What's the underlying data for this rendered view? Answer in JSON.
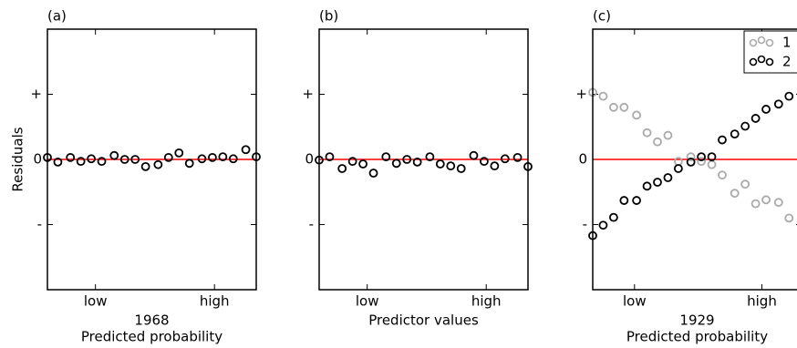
{
  "chart_data": [
    {
      "type": "scatter",
      "title": "(a)",
      "ylabel": "Residuals",
      "x_sublabel": "1968",
      "xlabel": "Predicted probability",
      "xlim": [
        0,
        1
      ],
      "ylim": [
        -2,
        2
      ],
      "xticks": [
        {
          "value": 0.23,
          "label": "low"
        },
        {
          "value": 0.8,
          "label": "high"
        }
      ],
      "yticks": [
        {
          "value": 1,
          "label": "+"
        },
        {
          "value": 0,
          "label": "0"
        },
        {
          "value": -1,
          "label": "-"
        }
      ],
      "reference_line": 0,
      "reference_color": "#ff0000",
      "color": "#000000",
      "x": [
        0,
        0.05,
        0.11,
        0.16,
        0.21,
        0.26,
        0.32,
        0.37,
        0.42,
        0.47,
        0.53,
        0.58,
        0.63,
        0.68,
        0.74,
        0.79,
        0.84,
        0.89,
        0.95,
        1
      ],
      "values": [
        0.03,
        -0.04,
        0.03,
        -0.03,
        0.01,
        -0.03,
        0.06,
        0,
        0,
        -0.11,
        -0.08,
        0.03,
        0.1,
        -0.06,
        0.01,
        0.03,
        0.04,
        0.01,
        0.15,
        0.04
      ]
    },
    {
      "type": "scatter",
      "title": "(b)",
      "xlabel": "Predictor values",
      "xlim": [
        0,
        1
      ],
      "ylim": [
        -2,
        2
      ],
      "xticks": [
        {
          "value": 0.23,
          "label": "low"
        },
        {
          "value": 0.8,
          "label": "high"
        }
      ],
      "yticks": [
        {
          "value": 1,
          "label": "+"
        },
        {
          "value": 0,
          "label": "0"
        },
        {
          "value": -1,
          "label": "-"
        }
      ],
      "reference_line": 0,
      "reference_color": "#ff0000",
      "color": "#000000",
      "x": [
        0,
        0.05,
        0.11,
        0.16,
        0.21,
        0.26,
        0.32,
        0.37,
        0.42,
        0.47,
        0.53,
        0.58,
        0.63,
        0.68,
        0.74,
        0.79,
        0.84,
        0.89,
        0.95,
        1
      ],
      "values": [
        -0.01,
        0.04,
        -0.14,
        -0.03,
        -0.07,
        -0.21,
        0.04,
        -0.06,
        0,
        -0.04,
        0.04,
        -0.07,
        -0.1,
        -0.14,
        0.06,
        -0.03,
        -0.1,
        0.01,
        0.03,
        -0.11
      ]
    },
    {
      "type": "scatter",
      "title": "(c)",
      "x_sublabel": "1929",
      "xlabel": "Predicted probability",
      "xlim": [
        0,
        1
      ],
      "ylim": [
        -2,
        2
      ],
      "xticks": [
        {
          "value": 0.2,
          "label": "low"
        },
        {
          "value": 0.81,
          "label": "high"
        }
      ],
      "yticks": [
        {
          "value": 1,
          "label": "+"
        },
        {
          "value": 0,
          "label": "0"
        },
        {
          "value": -1,
          "label": "-"
        }
      ],
      "reference_line": 0,
      "reference_color": "#ff0000",
      "legend": "upper right",
      "x": [
        0,
        0.05,
        0.1,
        0.15,
        0.21,
        0.26,
        0.31,
        0.36,
        0.41,
        0.47,
        0.52,
        0.57,
        0.62,
        0.68,
        0.73,
        0.78,
        0.83,
        0.89,
        0.94
      ],
      "series": [
        {
          "name": "1",
          "color": "#aaaaaa",
          "values": [
            1.03,
            0.97,
            0.8,
            0.8,
            0.68,
            0.41,
            0.27,
            0.37,
            -0.03,
            0.04,
            -0.03,
            -0.08,
            -0.24,
            -0.52,
            -0.38,
            -0.68,
            -0.62,
            -0.66,
            -0.9
          ]
        },
        {
          "name": "2",
          "color": "#000000",
          "values": [
            -1.17,
            -1.01,
            -0.89,
            -0.63,
            -0.63,
            -0.41,
            -0.35,
            -0.28,
            -0.14,
            -0.04,
            0.04,
            0.04,
            0.3,
            0.39,
            0.51,
            0.63,
            0.77,
            0.85,
            0.97
          ]
        }
      ]
    }
  ]
}
